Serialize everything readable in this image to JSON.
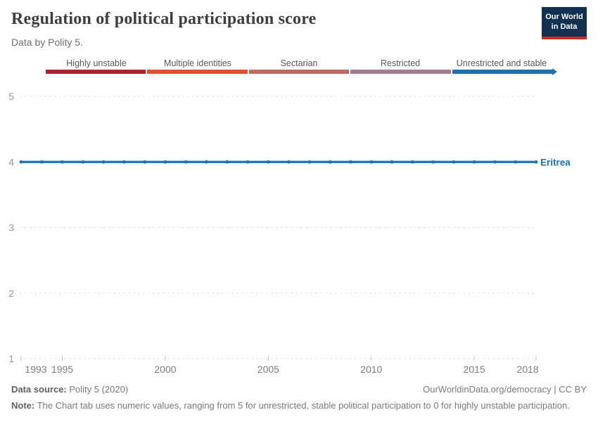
{
  "header": {
    "title": "Regulation of political participation score",
    "subtitle": "Data by Polity 5.",
    "logo": {
      "line1": "Our World",
      "line2": "in Data",
      "bg_color": "#12304f",
      "stripe_color": "#cb2a27"
    }
  },
  "legend": {
    "items": [
      {
        "label": "Highly unstable",
        "color": "#ad2335"
      },
      {
        "label": "Multiple identities",
        "color": "#e0512d"
      },
      {
        "label": "Sectarian",
        "color": "#bf6a61"
      },
      {
        "label": "Restricted",
        "color": "#a37b90"
      },
      {
        "label": "Unrestricted and stable",
        "color": "#1e73af"
      }
    ]
  },
  "chart_data": {
    "type": "line",
    "title": "Regulation of political participation score",
    "xlabel": "",
    "ylabel": "",
    "x_range": [
      1993,
      2018
    ],
    "ylim": [
      1,
      5
    ],
    "y_ticks": [
      5,
      4,
      3,
      2,
      1
    ],
    "x_ticks": [
      1993,
      1995,
      2000,
      2005,
      2010,
      2015,
      2018
    ],
    "grid": "horizontal-dashed",
    "gridline_color": "#dedede",
    "tick_color": "#c4c4c4",
    "series": [
      {
        "name": "Eritrea",
        "color": "#1d73b0",
        "x": [
          1993,
          1994,
          1995,
          1996,
          1997,
          1998,
          1999,
          2000,
          2001,
          2002,
          2003,
          2004,
          2005,
          2006,
          2007,
          2008,
          2009,
          2010,
          2011,
          2012,
          2013,
          2014,
          2015,
          2016,
          2017,
          2018
        ],
        "values": [
          4,
          4,
          4,
          4,
          4,
          4,
          4,
          4,
          4,
          4,
          4,
          4,
          4,
          4,
          4,
          4,
          4,
          4,
          4,
          4,
          4,
          4,
          4,
          4,
          4,
          4
        ]
      }
    ]
  },
  "footer": {
    "source_label": "Data source:",
    "source_value": " Polity 5 (2020)",
    "link": "OurWorldinData.org/democracy | CC BY",
    "note_label": "Note:",
    "note_value": " The Chart tab uses numeric values, ranging from 5 for unrestricted, stable political participation to 0 for highly unstable participation."
  }
}
